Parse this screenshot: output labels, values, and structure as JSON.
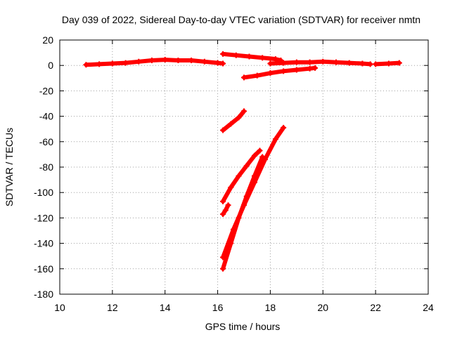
{
  "chart_data": {
    "type": "scatter",
    "title": "Day 039 of 2022, Sidereal Day-to-day VTEC variation (SDTVAR) for receiver nmtn",
    "xlabel": "GPS time / hours",
    "ylabel": "SDTVAR / TECUs",
    "xlim": [
      10,
      24
    ],
    "ylim": [
      -180,
      20
    ],
    "xticks": [
      10,
      12,
      14,
      16,
      18,
      20,
      22,
      24
    ],
    "yticks": [
      20,
      0,
      -20,
      -40,
      -60,
      -80,
      -100,
      -120,
      -140,
      -160,
      -180
    ],
    "grid": true,
    "series_color": "#ff0000",
    "series": [
      {
        "x": [
          11.0,
          11.5,
          12.0,
          12.5,
          13.0,
          13.5,
          14.0,
          14.5,
          15.0,
          15.5,
          16.0,
          16.2
        ],
        "y": [
          0.5,
          1.0,
          1.5,
          2.0,
          3.0,
          4.0,
          4.5,
          4.0,
          4.0,
          3.0,
          2.0,
          1.5
        ]
      },
      {
        "x": [
          16.2,
          16.7,
          17.2,
          17.7,
          18.2,
          18.4
        ],
        "y": [
          9.0,
          8.0,
          7.0,
          6.0,
          5.0,
          4.0
        ]
      },
      {
        "x": [
          18.0,
          18.5,
          19.0,
          19.5,
          20.0,
          20.5,
          21.0,
          21.5,
          21.8
        ],
        "y": [
          1.5,
          2.0,
          2.5,
          2.5,
          3.0,
          2.5,
          2.0,
          1.5,
          1.0
        ]
      },
      {
        "x": [
          22.0,
          22.5,
          22.9
        ],
        "y": [
          1.0,
          1.5,
          2.0
        ]
      },
      {
        "x": [
          17.0,
          17.5,
          18.0,
          18.5,
          19.0,
          19.5,
          19.7
        ],
        "y": [
          -9.5,
          -8.0,
          -6.0,
          -4.5,
          -3.5,
          -2.5,
          -2.0
        ]
      },
      {
        "x": [
          16.2,
          16.5,
          16.8,
          17.0
        ],
        "y": [
          -51.0,
          -46.0,
          -41.0,
          -36.0
        ]
      },
      {
        "x": [
          16.2,
          16.5,
          16.8,
          17.1,
          17.4,
          17.6
        ],
        "y": [
          -107.0,
          -96.0,
          -87.0,
          -79.0,
          -71.0,
          -67.0
        ]
      },
      {
        "x": [
          16.2,
          16.3,
          16.4
        ],
        "y": [
          -117.0,
          -114.0,
          -110.0
        ]
      },
      {
        "x": [
          16.2,
          16.6,
          17.0,
          17.4,
          17.8,
          18.2,
          18.5
        ],
        "y": [
          -151.0,
          -129.0,
          -110.0,
          -92.0,
          -74.0,
          -58.0,
          -49.0
        ]
      },
      {
        "x": [
          16.2,
          16.5,
          16.8,
          17.1,
          17.4,
          17.7
        ],
        "y": [
          -160.0,
          -140.0,
          -120.0,
          -103.0,
          -87.0,
          -72.0
        ]
      }
    ]
  }
}
